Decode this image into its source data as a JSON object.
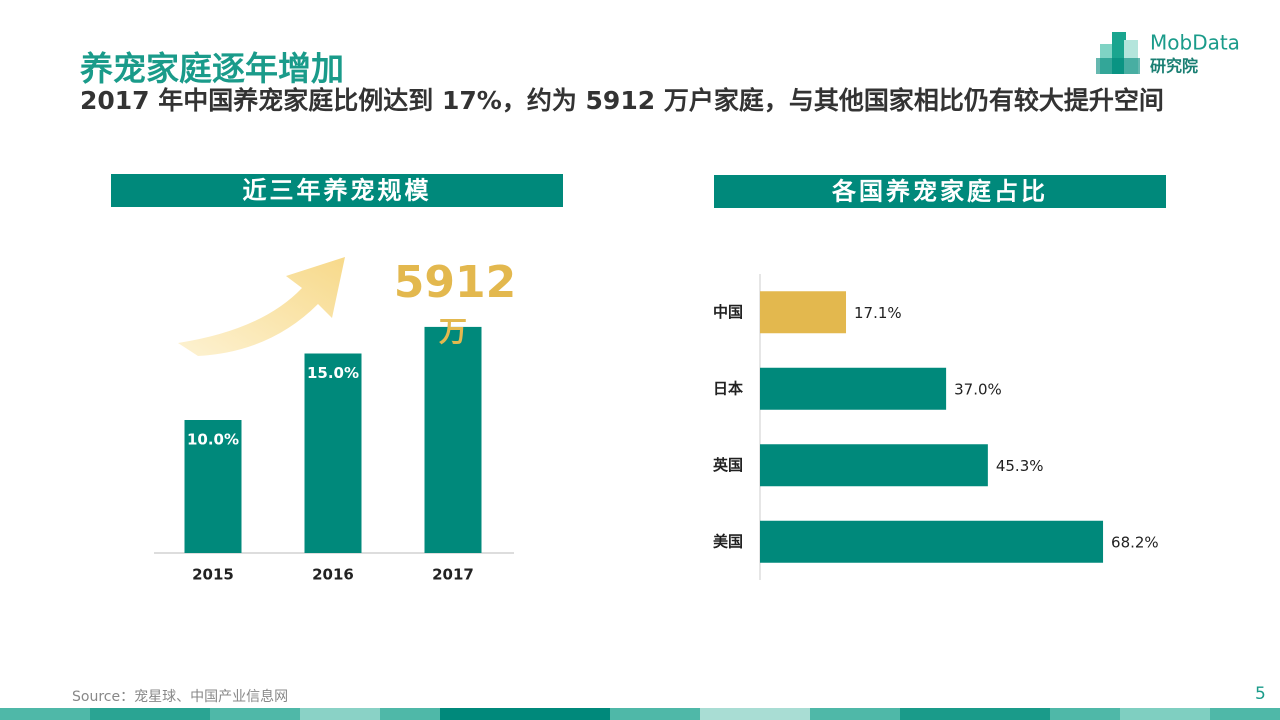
{
  "title": "养宠家庭逐年增加",
  "subtitle": "2017 年中国养宠家庭比例达到 17%，约为 5912 万户家庭，与其他国家相比仍有较大提升空间",
  "logo": {
    "name": "MobData",
    "suffix": "研究院"
  },
  "source": "Source：宠星球、中国产业信息网",
  "page_number": "5",
  "chart_data": [
    {
      "type": "bar",
      "title": "近三年养宠规模",
      "categories": [
        "2015",
        "2016",
        "2017"
      ],
      "values": [
        10,
        15,
        17
      ],
      "value_labels": [
        "10.0%",
        "15.0%",
        null
      ],
      "color": "#00897b",
      "ylim": [
        0,
        20
      ],
      "annotation": "5912",
      "annotation_unit": "万",
      "annotation_color": "#e3b84e"
    },
    {
      "type": "barh",
      "title": "各国养宠家庭占比",
      "categories": [
        "中国",
        "日本",
        "英国",
        "美国"
      ],
      "values": [
        17.1,
        37.0,
        45.3,
        68.2
      ],
      "value_labels": [
        "17.1%",
        "37.0%",
        "45.3%",
        "68.2%"
      ],
      "colors": [
        "#e3b84e",
        "#00897b",
        "#00897b",
        "#00897b"
      ],
      "xlim": [
        0,
        100
      ]
    }
  ]
}
